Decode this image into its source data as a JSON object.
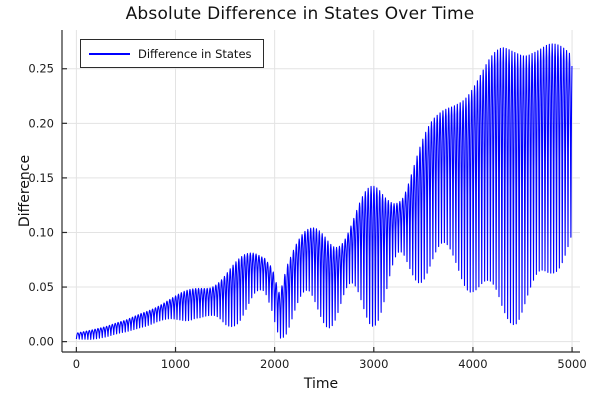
{
  "chart_data": {
    "type": "line",
    "title": "Absolute Difference in States Over Time",
    "xlabel": "Time",
    "ylabel": "Difference",
    "grid": true,
    "legend": {
      "position": "top-left",
      "entries": [
        {
          "label": "Difference in States",
          "color": "#0000ff"
        }
      ]
    },
    "x_ticks": [
      0,
      1000,
      2000,
      3000,
      4000,
      5000
    ],
    "y_ticks": [
      0.0,
      0.05,
      0.1,
      0.15,
      0.2,
      0.25
    ],
    "y_tick_labels": [
      "0.00",
      "0.05",
      "0.10",
      "0.15",
      "0.20",
      "0.25"
    ],
    "xlim": [
      -145,
      5080
    ],
    "ylim": [
      -0.0095,
      0.2855
    ],
    "colors": {
      "line": "#0000ff",
      "grid": "#e3e3e3",
      "spine": "#2b2b2b",
      "tick_text": "#1c1c1c"
    },
    "signal_model": {
      "description": "fast |sin| oscillation arches between slowly varying lower and upper envelopes (absolute difference of two drifting oscillators)",
      "carrier_period": 29,
      "arch_exponent": 0.75,
      "samples_per_arch": 8,
      "envelope_t": [
        0,
        150,
        300,
        500,
        650,
        800,
        1000,
        1200,
        1350,
        1500,
        1650,
        1800,
        1900,
        1975,
        2050,
        2120,
        2200,
        2350,
        2500,
        2650,
        2800,
        2950,
        3100,
        3250,
        3400,
        3550,
        3700,
        3850,
        4000,
        4150,
        4300,
        4450,
        4600,
        4750,
        4900,
        5000
      ],
      "envelope_upper": [
        0.008,
        0.011,
        0.014,
        0.02,
        0.027,
        0.033,
        0.042,
        0.052,
        0.06,
        0.069,
        0.077,
        0.086,
        0.09,
        0.088,
        0.06,
        0.086,
        0.094,
        0.104,
        0.118,
        0.127,
        0.134,
        0.141,
        0.15,
        0.166,
        0.182,
        0.198,
        0.215,
        0.232,
        0.247,
        0.26,
        0.271,
        0.278,
        0.281,
        0.277,
        0.27,
        0.265
      ],
      "envelope_lower": [
        0.002,
        0.002,
        0.004,
        0.008,
        0.013,
        0.016,
        0.018,
        0.02,
        0.012,
        0.01,
        0.017,
        0.027,
        0.03,
        0.02,
        0.003,
        0.004,
        0.01,
        0.018,
        0.014,
        0.009,
        0.007,
        0.011,
        0.02,
        0.038,
        0.05,
        0.058,
        0.062,
        0.056,
        0.042,
        0.025,
        0.014,
        0.016,
        0.026,
        0.046,
        0.072,
        0.09
      ],
      "texture": {
        "depth": 0.38,
        "peak_mod_period": 640,
        "peak_mod_phase": 0.8,
        "trough_mod_period": 470,
        "trough_mod_phase": 2.2,
        "peak_weight_t": [
          0,
          600,
          1200,
          2000,
          2600,
          3300,
          3700,
          5000
        ],
        "peak_weight_v": [
          0.1,
          0.25,
          0.55,
          0.8,
          0.9,
          0.8,
          0.25,
          0.15
        ],
        "trough_weight_t": [
          0,
          600,
          1200,
          2000,
          2600,
          3300,
          3700,
          4200,
          5000
        ],
        "trough_weight_v": [
          0.15,
          0.3,
          0.6,
          0.9,
          1.0,
          0.9,
          0.5,
          0.35,
          0.3
        ]
      }
    }
  }
}
